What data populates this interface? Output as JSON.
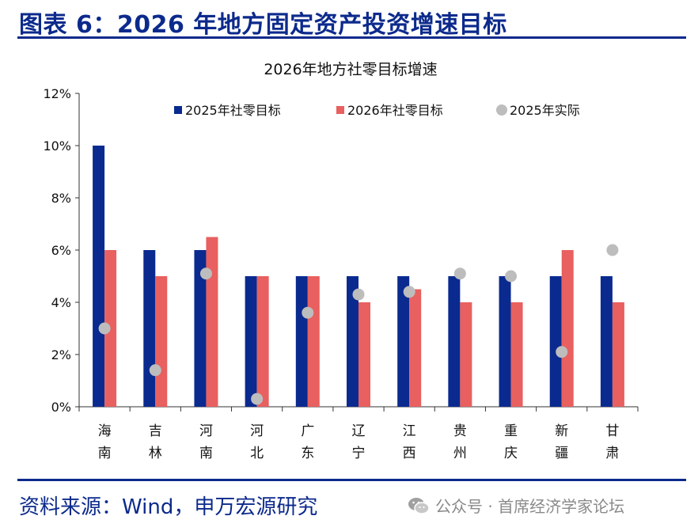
{
  "header": {
    "title": "图表 6：2026 年地方固定资产投资增速目标"
  },
  "footer": {
    "source": "资料来源：Wind，申万宏源研究",
    "watermark": "公众号 · 首席经济学家论坛"
  },
  "colors": {
    "accent": "#0c2a8c",
    "series_2025_target": "#0a2a8f",
    "series_2026_target": "#e8605f",
    "series_2025_actual": "#bdbdbd"
  },
  "chart_data": {
    "type": "bar",
    "title": "2026年地方社零目标增速",
    "categories": [
      "海南",
      "吉林",
      "河南",
      "河北",
      "广东",
      "辽宁",
      "江西",
      "贵州",
      "重庆",
      "新疆",
      "甘肃"
    ],
    "yticks": [
      "0%",
      "2%",
      "4%",
      "6%",
      "8%",
      "10%",
      "12%"
    ],
    "ylim": [
      0,
      12
    ],
    "legend_position": "top",
    "series": [
      {
        "name": "2025年社零目标",
        "kind": "bar",
        "color": "#0a2a8f",
        "values": [
          10,
          6,
          6,
          5,
          5,
          5,
          5,
          5,
          5,
          5,
          5
        ]
      },
      {
        "name": "2026年社零目标",
        "kind": "bar",
        "color": "#e8605f",
        "values": [
          6,
          5,
          6.5,
          5,
          5,
          4,
          4.5,
          4,
          4,
          6,
          4
        ]
      },
      {
        "name": "2025年实际",
        "kind": "scatter",
        "color": "#bdbdbd",
        "values": [
          3.0,
          1.4,
          5.1,
          0.3,
          3.6,
          4.3,
          4.4,
          5.1,
          5.0,
          2.1,
          6.0
        ]
      }
    ]
  }
}
